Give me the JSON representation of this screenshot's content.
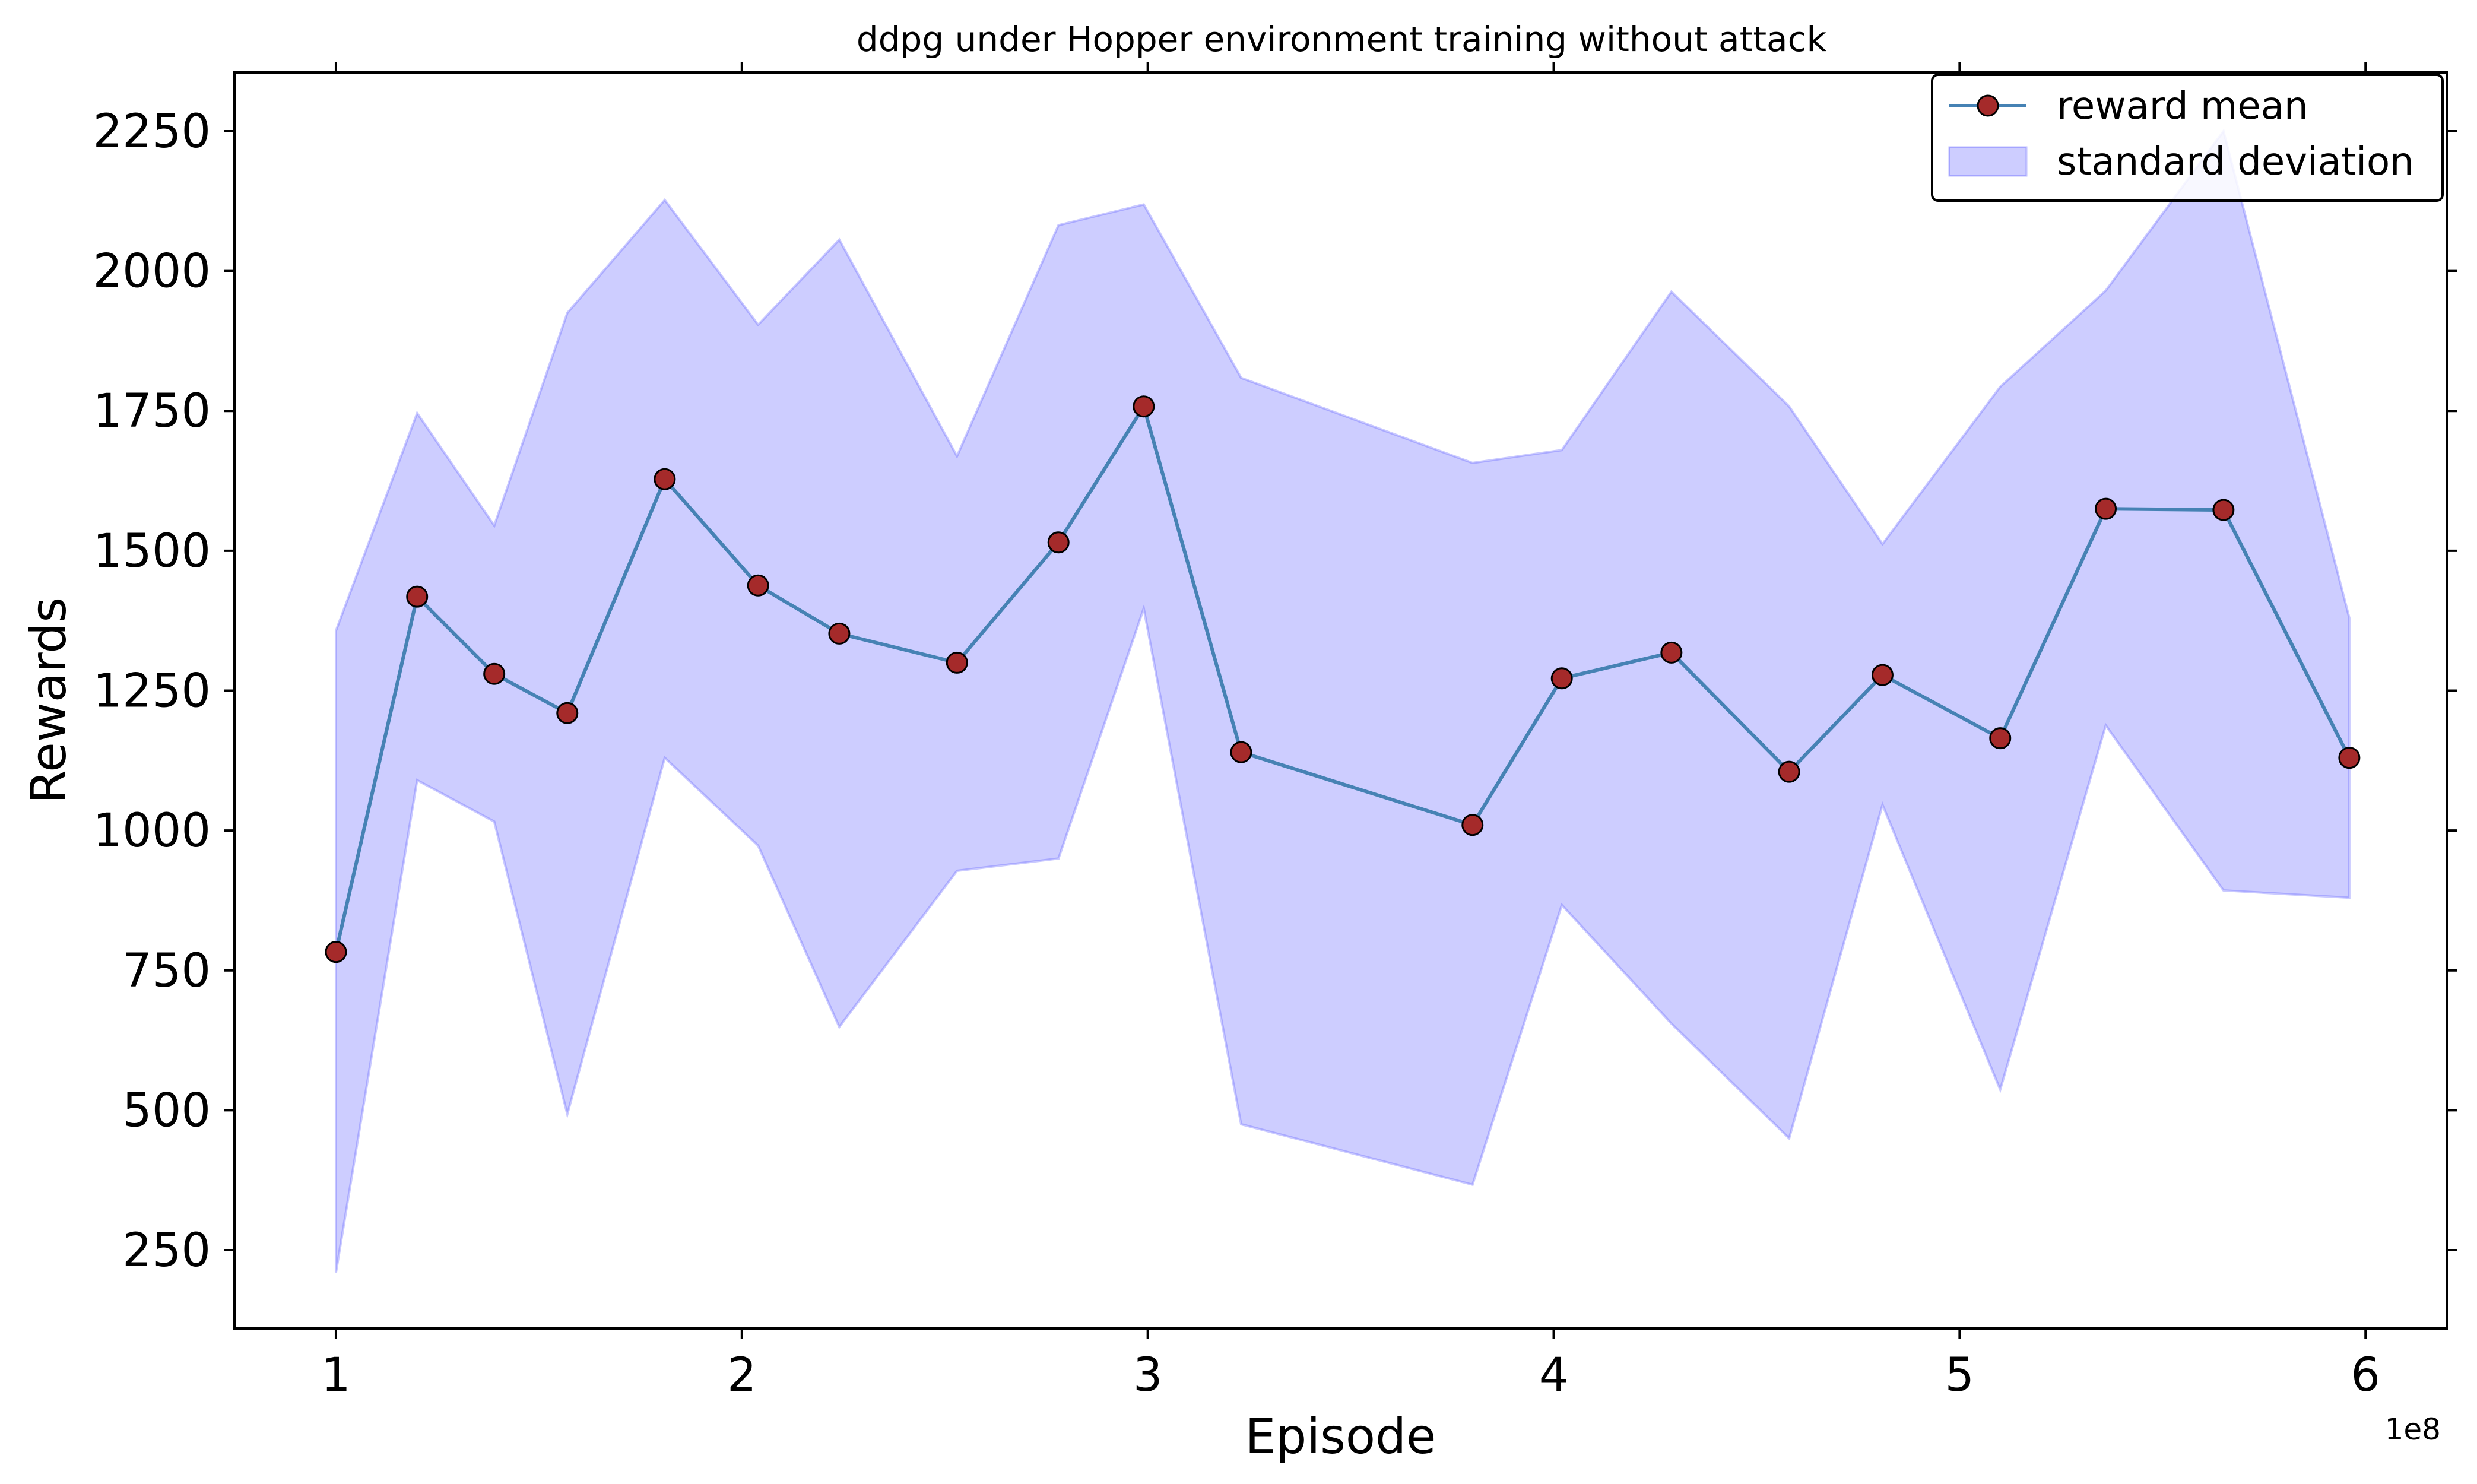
{
  "chart_data": {
    "type": "line",
    "title": "ddpg under Hopper environment training without attack",
    "xlabel": "Episode",
    "ylabel": "Rewards",
    "x_offset_label": "1e8",
    "xlim": [
      0.75,
      6.2
    ],
    "ylim": [
      110,
      2355
    ],
    "x_ticks": [
      1,
      2,
      3,
      4,
      5,
      6
    ],
    "x_tick_labels": [
      "1",
      "2",
      "3",
      "4",
      "5",
      "6"
    ],
    "y_ticks": [
      250,
      500,
      750,
      1000,
      1250,
      1500,
      1750,
      2000,
      2250
    ],
    "y_tick_labels": [
      "250",
      "500",
      "750",
      "1000",
      "1250",
      "1500",
      "1750",
      "2000",
      "2250"
    ],
    "grid": false,
    "legend_position": "top-right",
    "series": [
      {
        "name": "reward mean",
        "kind": "line",
        "color": "#4682b4",
        "marker_fill": "#a52a2a",
        "marker_edge": "#000000",
        "x": [
          1.0,
          1.2,
          1.39,
          1.57,
          1.81,
          2.04,
          2.24,
          2.53,
          2.78,
          2.99,
          3.23,
          3.8,
          4.02,
          4.29,
          4.58,
          4.81,
          5.1,
          5.36,
          5.65,
          5.96
        ],
        "y": [
          783,
          1418,
          1280,
          1210,
          1628,
          1438,
          1352,
          1300,
          1515,
          1758,
          1140,
          1010,
          1272,
          1318,
          1105,
          1278,
          1165,
          1575,
          1573,
          1130
        ]
      },
      {
        "name": "standard deviation",
        "kind": "band",
        "color": "#6666ff",
        "opacity": 0.33,
        "x": [
          1.0,
          1.2,
          1.39,
          1.57,
          1.81,
          2.04,
          2.24,
          2.53,
          2.78,
          2.99,
          3.23,
          3.8,
          4.02,
          4.29,
          4.58,
          4.81,
          5.1,
          5.36,
          5.65,
          5.96
        ],
        "upper": [
          1357,
          1746,
          1545,
          1925,
          2127,
          1904,
          2056,
          1669,
          2082,
          2119,
          1809,
          1657,
          1680,
          1963,
          1758,
          1512,
          1793,
          1965,
          2250,
          1380
        ],
        "lower": [
          210,
          1090,
          1016,
          493,
          1130,
          973,
          649,
          928,
          950,
          1397,
          475,
          367,
          867,
          655,
          450,
          1046,
          537,
          1188,
          893,
          880
        ]
      }
    ]
  }
}
